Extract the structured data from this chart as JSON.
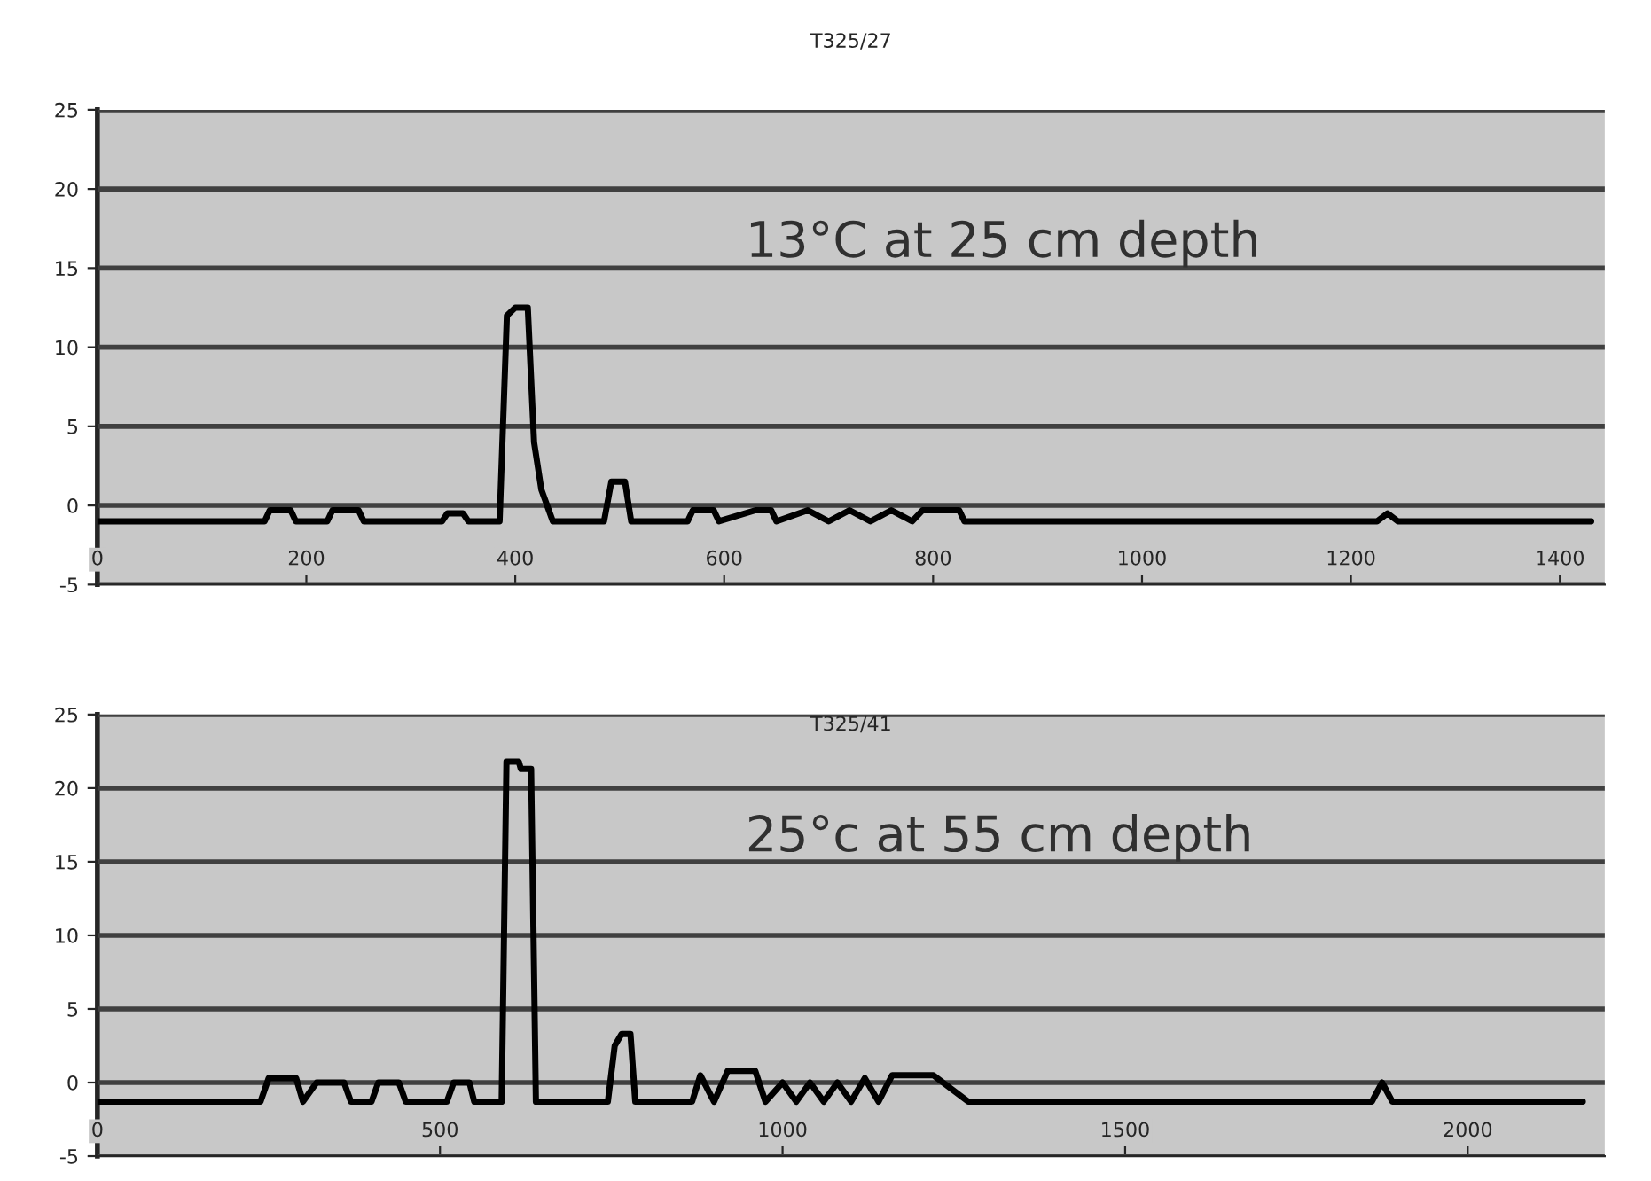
{
  "chart_data": [
    {
      "type": "line",
      "title": "T325/27",
      "annotations": [
        "13°C at 25 cm depth"
      ],
      "xlim": [
        0,
        1443
      ],
      "xticks": [
        0,
        200,
        400,
        600,
        800,
        1000,
        1200,
        1400
      ],
      "ylim": [
        -5,
        25
      ],
      "yticks": [
        -5,
        0,
        5,
        10,
        15,
        20,
        25
      ],
      "grid": "y",
      "marker": "none",
      "line_style": "solid",
      "series": [
        {
          "color": "#000000",
          "x": [
            0,
            160,
            165,
            185,
            190,
            220,
            225,
            250,
            255,
            330,
            335,
            350,
            355,
            385,
            392,
            400,
            412,
            418,
            425,
            436,
            485,
            492,
            505,
            511,
            565,
            570,
            590,
            595,
            630,
            645,
            650,
            680,
            700,
            720,
            740,
            760,
            780,
            790,
            825,
            830,
            1225,
            1235,
            1245,
            1430
          ],
          "values": [
            -1,
            -1,
            -0.3,
            -0.3,
            -1,
            -1,
            -0.3,
            -0.3,
            -1,
            -1,
            -0.5,
            -0.5,
            -1,
            -1,
            12,
            12.5,
            12.5,
            4,
            1,
            -1,
            -1,
            1.5,
            1.5,
            -1,
            -1,
            -0.3,
            -0.3,
            -1,
            -0.3,
            -0.3,
            -1,
            -0.3,
            -1,
            -0.3,
            -1,
            -0.3,
            -1,
            -0.3,
            -0.3,
            -1,
            -1,
            -0.5,
            -1,
            -1
          ]
        }
      ]
    },
    {
      "type": "line",
      "title": "T325/41",
      "annotations": [
        "25°c at 55 cm depth"
      ],
      "xlim": [
        0,
        2200
      ],
      "xticks": [
        0,
        500,
        1000,
        1500,
        2000
      ],
      "ylim": [
        -5,
        25
      ],
      "yticks": [
        -5,
        0,
        5,
        10,
        15,
        20,
        25
      ],
      "grid": "y",
      "marker": "none",
      "line_style": "solid",
      "series": [
        {
          "color": "#000000",
          "x": [
            0,
            238,
            250,
            290,
            300,
            320,
            360,
            370,
            400,
            410,
            440,
            450,
            510,
            520,
            543,
            550,
            590,
            597,
            615,
            618,
            633,
            640,
            745,
            755,
            765,
            778,
            785,
            868,
            880,
            900,
            920,
            960,
            975,
            1000,
            1020,
            1040,
            1060,
            1080,
            1100,
            1120,
            1140,
            1160,
            1220,
            1271,
            1860,
            1875,
            1890,
            2168
          ],
          "values": [
            -1.3,
            -1.3,
            0.3,
            0.3,
            -1.3,
            0,
            0,
            -1.3,
            -1.3,
            0,
            0,
            -1.3,
            -1.3,
            0,
            0,
            -1.3,
            -1.3,
            21.8,
            21.8,
            21.3,
            21.3,
            -1.3,
            -1.3,
            2.5,
            3.3,
            3.3,
            -1.3,
            -1.3,
            0.5,
            -1.3,
            0.8,
            0.8,
            -1.3,
            0,
            -1.3,
            0,
            -1.3,
            0,
            -1.3,
            0.3,
            -1.3,
            0.5,
            0.5,
            -1.3,
            -1.3,
            0,
            -1.3,
            -1.3
          ]
        }
      ]
    }
  ]
}
